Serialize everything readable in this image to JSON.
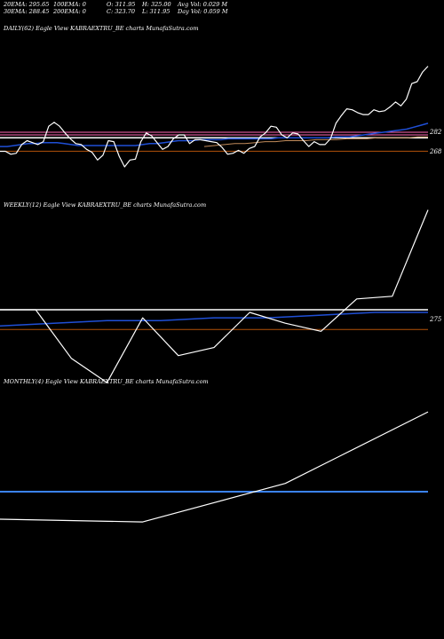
{
  "header": {
    "row1": [
      {
        "label": "20EMA:",
        "value": "295.65"
      },
      {
        "label": "100EMA:",
        "value": "0"
      },
      {
        "label": "O:",
        "value": "311.95"
      },
      {
        "label": "H:",
        "value": "325.00"
      },
      {
        "label": "Avg Vol:",
        "value": "0.029 M"
      }
    ],
    "row2": [
      {
        "label": "30EMA:",
        "value": "288.45"
      },
      {
        "label": "200EMA:",
        "value": "0"
      },
      {
        "label": "C:",
        "value": "323.70"
      },
      {
        "label": "L:",
        "value": "311.95"
      },
      {
        "label": "Day Vol:",
        "value": "0.059 M"
      }
    ]
  },
  "colors": {
    "background": "#000000",
    "price": "#ffffff",
    "ema_blue": "#1f4fd6",
    "support": "#ffffff",
    "resistance_pink": "#ff69b4",
    "level_orange": "#b45309",
    "ma_brown": "#c08a5a"
  },
  "chart_data": [
    {
      "type": "line",
      "title": "DAILY(62) Eagle   View  KABRAEXTRU_BE charts MunafaSutra.com",
      "ytick_labels": [
        "282",
        "268"
      ],
      "levels": {
        "pink": 283,
        "white": 280,
        "orange": 268
      },
      "series": [
        {
          "role": "price",
          "values": [
            266,
            266,
            263,
            264,
            273,
            277,
            275,
            273,
            276,
            292,
            296,
            292,
            285,
            279,
            274,
            273,
            268,
            265,
            257,
            262,
            277,
            276,
            261,
            250,
            257,
            258,
            276,
            285,
            282,
            275,
            268,
            271,
            279,
            283,
            283,
            274,
            278,
            278,
            277,
            276,
            275,
            270,
            263,
            264,
            267,
            264,
            269,
            271,
            281,
            285,
            292,
            291,
            283,
            280,
            285,
            284,
            277,
            271,
            276,
            273,
            273,
            279,
            295,
            303,
            310,
            309,
            306,
            304,
            304,
            309,
            307,
            308,
            312,
            317,
            313,
            320,
            336,
            338,
            348,
            354
          ]
        },
        {
          "role": "ema",
          "values": [
            271,
            271,
            272,
            273,
            274,
            274,
            275,
            275,
            275,
            274,
            273,
            272,
            272,
            272,
            272,
            272,
            272,
            272,
            272,
            272,
            273,
            274,
            274,
            275,
            276,
            277,
            277,
            277,
            278,
            278,
            278,
            278,
            279,
            279,
            279,
            279,
            279,
            279,
            279,
            280,
            280,
            280,
            280,
            280,
            280,
            280,
            280,
            281,
            281,
            281,
            282,
            283,
            284,
            285,
            286,
            287,
            288,
            289,
            291,
            293,
            295
          ]
        },
        {
          "role": "ma",
          "values": [
            271,
            272,
            273,
            274,
            274,
            275,
            276,
            276,
            277,
            277,
            277,
            278,
            278,
            278,
            279,
            279,
            279,
            280,
            280,
            280,
            280,
            281,
            281
          ]
        }
      ]
    },
    {
      "type": "line",
      "title": "WEEKLY(12) Eagle   View  KABRAEXTRU_BE charts MunafaSutra.com",
      "ytick_labels": [
        "275"
      ],
      "levels": {
        "white": 280,
        "orange": 273
      },
      "series": [
        {
          "role": "price",
          "values": [
            280,
            280,
            262,
            253,
            277,
            263,
            266,
            279,
            275,
            272,
            284,
            285,
            317
          ]
        },
        {
          "role": "ema",
          "values": [
            274,
            275,
            276,
            276,
            277,
            277,
            278,
            279,
            279
          ]
        }
      ]
    },
    {
      "type": "line",
      "title": "MONTHLY(4) Eagle   View  KABRAEXTRU_BE charts MunafaSutra.com",
      "ytick_labels": [],
      "levels": {
        "blue": 277
      },
      "series": [
        {
          "role": "price",
          "values": [
            267,
            266,
            280,
            306
          ]
        }
      ]
    }
  ]
}
